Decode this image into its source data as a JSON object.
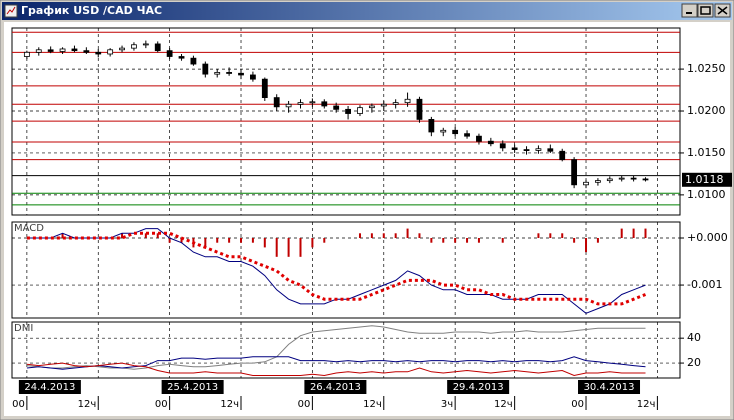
{
  "window": {
    "title": "График USD /CAD ЧАС"
  },
  "chart_data": [
    {
      "type": "candlestick",
      "x": [
        0,
        2,
        4,
        6,
        8,
        10,
        12,
        14,
        16,
        18,
        20,
        22,
        24,
        26,
        28,
        30,
        32,
        34,
        36,
        38,
        40,
        42,
        44,
        46,
        48,
        50,
        52,
        54,
        56,
        58,
        60,
        62,
        64,
        66,
        68,
        70,
        72,
        74,
        76,
        78,
        80,
        82,
        84,
        86,
        88,
        90,
        92,
        94,
        96,
        98,
        100,
        102,
        104
      ],
      "open": [
        1.0265,
        1.027,
        1.0273,
        1.0271,
        1.0274,
        1.0272,
        1.027,
        1.0268,
        1.0273,
        1.0275,
        1.0279,
        1.028,
        1.0272,
        1.0265,
        1.0263,
        1.0256,
        1.0244,
        1.0246,
        1.0245,
        1.0243,
        1.0238,
        1.0216,
        1.0205,
        1.0208,
        1.021,
        1.0211,
        1.0206,
        1.0202,
        1.0197,
        1.0204,
        1.0206,
        1.0208,
        1.021,
        1.0214,
        1.019,
        1.0175,
        1.0177,
        1.0173,
        1.017,
        1.0164,
        1.0161,
        1.0156,
        1.0154,
        1.0153,
        1.0155,
        1.0152,
        1.0142,
        1.0112,
        1.0115,
        1.0117,
        1.0119,
        1.012,
        1.0119
      ],
      "high": [
        1.0272,
        1.0276,
        1.0277,
        1.0276,
        1.0278,
        1.0276,
        1.0274,
        1.0275,
        1.0278,
        1.0282,
        1.0284,
        1.0283,
        1.0275,
        1.0268,
        1.0266,
        1.0259,
        1.025,
        1.0252,
        1.025,
        1.0247,
        1.024,
        1.022,
        1.0212,
        1.0214,
        1.0215,
        1.0214,
        1.021,
        1.0206,
        1.0207,
        1.0209,
        1.0212,
        1.0214,
        1.0222,
        1.0217,
        1.0193,
        1.018,
        1.0181,
        1.0177,
        1.0173,
        1.0168,
        1.0165,
        1.016,
        1.0158,
        1.0159,
        1.016,
        1.0155,
        1.0145,
        1.0118,
        1.012,
        1.0122,
        1.0123,
        1.0123,
        1.0121
      ],
      "low": [
        1.0262,
        1.0266,
        1.0269,
        1.0268,
        1.027,
        1.0268,
        1.0264,
        1.0265,
        1.027,
        1.0272,
        1.0275,
        1.027,
        1.0262,
        1.026,
        1.0254,
        1.024,
        1.024,
        1.0242,
        1.0238,
        1.0235,
        1.0212,
        1.02,
        1.0198,
        1.0203,
        1.0205,
        1.0203,
        1.0198,
        1.019,
        1.0194,
        1.0198,
        1.02,
        1.0203,
        1.0205,
        1.0186,
        1.017,
        1.017,
        1.017,
        1.0167,
        1.016,
        1.0158,
        1.0152,
        1.015,
        1.0148,
        1.0149,
        1.015,
        1.014,
        1.0108,
        1.0108,
        1.0111,
        1.0114,
        1.0116,
        1.0116,
        1.0116
      ],
      "close": [
        1.027,
        1.0273,
        1.0271,
        1.0274,
        1.0272,
        1.027,
        1.0268,
        1.0273,
        1.0275,
        1.0279,
        1.028,
        1.0272,
        1.0265,
        1.0263,
        1.0256,
        1.0244,
        1.0246,
        1.0245,
        1.0243,
        1.0238,
        1.0216,
        1.0205,
        1.0208,
        1.021,
        1.0211,
        1.0206,
        1.0202,
        1.0197,
        1.0204,
        1.0206,
        1.0208,
        1.021,
        1.0214,
        1.019,
        1.0175,
        1.0177,
        1.0173,
        1.017,
        1.0164,
        1.0161,
        1.0156,
        1.0154,
        1.0153,
        1.0155,
        1.0152,
        1.0142,
        1.0112,
        1.0115,
        1.0117,
        1.0119,
        1.012,
        1.0119,
        1.0118
      ],
      "xlim": [
        -2.5,
        109.8
      ],
      "ylim": [
        1.0076,
        1.0299
      ],
      "yticks": [
        {
          "value": 1.01,
          "label": "1.0100"
        },
        {
          "value": 1.015,
          "label": "1.0150"
        },
        {
          "value": 1.02,
          "label": "1.0200"
        },
        {
          "value": 1.025,
          "label": "1.0250"
        }
      ],
      "levels": [
        1.0294,
        1.027,
        1.023,
        1.0208,
        1.0188,
        1.0163,
        1.0142,
        1.0123,
        1.0102,
        1.0088
      ],
      "level_colors": [
        "#c00000",
        "#c00000",
        "#c00000",
        "#c00000",
        "#c00000",
        "#c00000",
        "#c00000",
        "#000000",
        "#008000",
        "#008000"
      ]
    },
    {
      "type": "line",
      "title": "MACD",
      "x": [
        0,
        2,
        4,
        6,
        8,
        10,
        12,
        14,
        16,
        18,
        20,
        22,
        24,
        26,
        28,
        30,
        32,
        34,
        36,
        38,
        40,
        42,
        44,
        46,
        48,
        50,
        52,
        54,
        56,
        58,
        60,
        62,
        64,
        66,
        68,
        70,
        72,
        74,
        76,
        78,
        80,
        82,
        84,
        86,
        88,
        90,
        92,
        94,
        96,
        98,
        100,
        102,
        104
      ],
      "series": [
        {
          "style": "bar",
          "color": "#c00000",
          "values": [
            0,
            0,
            0,
            0.0001,
            0,
            0,
            0,
            0,
            0.0001,
            0,
            0.0001,
            0.0001,
            -0.0001,
            -0.0001,
            -0.0002,
            -0.0002,
            -0.0001,
            -0.0001,
            -0.0001,
            -0.0001,
            -0.0002,
            -0.0004,
            -0.0004,
            -0.0004,
            -0.0002,
            -0.0001,
            0,
            0,
            0.0001,
            0.0001,
            0.0001,
            0.0001,
            0.0002,
            0.0001,
            -0.0001,
            -0.0001,
            -0.0001,
            -0.0001,
            -0.0001,
            0,
            -0.0001,
            0,
            0,
            0.0001,
            0.0001,
            0.0001,
            -0.0001,
            -0.0003,
            -0.0001,
            0,
            0.0002,
            0.0002,
            0.0002
          ]
        },
        {
          "style": "line",
          "color": "#000080",
          "values": [
            0,
            0,
            0,
            0.0001,
            0,
            0,
            0,
            0,
            0.0001,
            0.0001,
            0.0002,
            0.0002,
            0,
            -0.0001,
            -0.0003,
            -0.0004,
            -0.0004,
            -0.0005,
            -0.0005,
            -0.0006,
            -0.0008,
            -0.0011,
            -0.0013,
            -0.0014,
            -0.0014,
            -0.0014,
            -0.0013,
            -0.0013,
            -0.0012,
            -0.0011,
            -0.001,
            -0.0009,
            -0.0007,
            -0.0008,
            -0.001,
            -0.0011,
            -0.0011,
            -0.0012,
            -0.0012,
            -0.0012,
            -0.0013,
            -0.0013,
            -0.0013,
            -0.0012,
            -0.0012,
            -0.0012,
            -0.0014,
            -0.0016,
            -0.0015,
            -0.0014,
            -0.0012,
            -0.0011,
            -0.001
          ]
        },
        {
          "style": "dotted",
          "color": "#e00000",
          "values": [
            0,
            0,
            0,
            0,
            0,
            0,
            0,
            0,
            0,
            0.0001,
            0.0001,
            0.0001,
            0.0001,
            0,
            -0.0001,
            -0.0002,
            -0.0003,
            -0.0004,
            -0.0004,
            -0.0005,
            -0.0006,
            -0.0007,
            -0.0009,
            -0.001,
            -0.0012,
            -0.0013,
            -0.0013,
            -0.0013,
            -0.0013,
            -0.0012,
            -0.0011,
            -0.001,
            -0.0009,
            -0.0009,
            -0.0009,
            -0.001,
            -0.001,
            -0.0011,
            -0.0011,
            -0.0012,
            -0.0012,
            -0.0013,
            -0.0013,
            -0.0013,
            -0.0013,
            -0.0013,
            -0.0013,
            -0.0013,
            -0.0014,
            -0.0014,
            -0.0014,
            -0.0013,
            -0.0012
          ]
        }
      ],
      "xlim": [
        -2.5,
        109.8
      ],
      "ylim": [
        -0.0017,
        0.00034
      ],
      "yticks": [
        {
          "value": 0,
          "label": "+0.000"
        },
        {
          "value": -0.001,
          "label": "-0.001"
        }
      ]
    },
    {
      "type": "line",
      "title": "DMI",
      "x": [
        0,
        2,
        4,
        6,
        8,
        10,
        12,
        14,
        16,
        18,
        20,
        22,
        24,
        26,
        28,
        30,
        32,
        34,
        36,
        38,
        40,
        42,
        44,
        46,
        48,
        50,
        52,
        54,
        56,
        58,
        60,
        62,
        64,
        66,
        68,
        70,
        72,
        74,
        76,
        78,
        80,
        82,
        84,
        86,
        88,
        90,
        92,
        94,
        96,
        98,
        100,
        102,
        104
      ],
      "series": [
        {
          "style": "line",
          "color": "#808080",
          "values": [
            18,
            17,
            16,
            16,
            17,
            18,
            17,
            16,
            16,
            15,
            16,
            18,
            19,
            18,
            17,
            17,
            18,
            19,
            20,
            20,
            21,
            25,
            35,
            42,
            45,
            46,
            47,
            48,
            49,
            50,
            49,
            47,
            45,
            44,
            44,
            44,
            45,
            45,
            45,
            44,
            45,
            45,
            46,
            45,
            45,
            45,
            46,
            47,
            48,
            48,
            48,
            48,
            48
          ]
        },
        {
          "style": "line",
          "color": "#000080",
          "values": [
            16,
            17,
            16,
            15,
            16,
            17,
            18,
            17,
            16,
            17,
            18,
            22,
            22,
            24,
            24,
            23,
            24,
            24,
            24,
            25,
            25,
            25,
            25,
            22,
            22,
            22,
            21,
            22,
            21,
            22,
            22,
            21,
            22,
            21,
            22,
            22,
            21,
            22,
            22,
            21,
            22,
            21,
            22,
            22,
            21,
            22,
            25,
            22,
            21,
            20,
            19,
            18,
            17
          ]
        },
        {
          "style": "line",
          "color": "#c00000",
          "values": [
            19,
            18,
            19,
            20,
            18,
            17,
            18,
            19,
            20,
            18,
            17,
            14,
            12,
            12,
            12,
            13,
            12,
            12,
            12,
            10,
            10,
            10,
            10,
            10,
            11,
            10,
            12,
            13,
            12,
            13,
            12,
            13,
            13,
            16,
            13,
            12,
            13,
            14,
            13,
            12,
            13,
            14,
            13,
            12,
            13,
            14,
            10,
            12,
            12,
            13,
            12,
            12,
            12
          ]
        }
      ],
      "xlim": [
        -2.5,
        109.8
      ],
      "ylim": [
        8,
        53
      ],
      "yticks": [
        20,
        40
      ],
      "xticks": [
        {
          "value": 0,
          "label": "00"
        },
        {
          "value": 12,
          "label": "12ч"
        },
        {
          "value": 24,
          "label": "00"
        },
        {
          "value": 36,
          "label": "12ч"
        },
        {
          "value": 48,
          "label": "00"
        },
        {
          "value": 60,
          "label": "12ч"
        },
        {
          "value": 72,
          "label": "3ч"
        },
        {
          "value": 82,
          "label": "12ч"
        },
        {
          "value": 94,
          "label": "00"
        },
        {
          "value": 106,
          "label": "12ч"
        }
      ],
      "date_labels": [
        {
          "value": 0,
          "label": "24.4.2013"
        },
        {
          "value": 24,
          "label": "25.4.2013"
        },
        {
          "value": 48,
          "label": "26.4.2013"
        },
        {
          "value": 72,
          "label": "29.4.2013"
        },
        {
          "value": 94,
          "label": "30.4.2013"
        }
      ]
    }
  ]
}
